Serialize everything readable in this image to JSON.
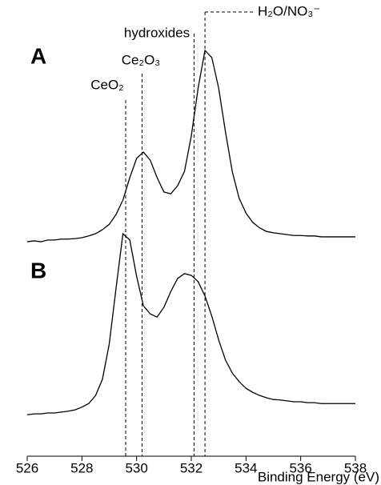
{
  "chart_data": {
    "type": "line",
    "x_label": "Binding Energy (eV)",
    "x": [
      526,
      526.25,
      526.5,
      526.75,
      527,
      527.25,
      527.5,
      527.75,
      528,
      528.25,
      528.5,
      528.75,
      529,
      529.25,
      529.5,
      529.75,
      530,
      530.25,
      530.5,
      530.75,
      531,
      531.25,
      531.5,
      531.75,
      532,
      532.25,
      532.5,
      532.75,
      533,
      533.25,
      533.5,
      533.75,
      534,
      534.25,
      534.5,
      534.75,
      535,
      535.25,
      535.5,
      535.75,
      536,
      536.25,
      536.5,
      536.75,
      537,
      537.25,
      537.5,
      537.75,
      538
    ],
    "series": [
      {
        "name": "A",
        "color": "#000000",
        "values": [
          48.2,
          48.4,
          48.2,
          48.6,
          48.6,
          48.8,
          48.8,
          48.9,
          49.1,
          49.5,
          50.0,
          50.9,
          52.1,
          54.3,
          57.5,
          62.5,
          66.8,
          68.2,
          66.4,
          62.5,
          59.3,
          58.9,
          60.7,
          63.9,
          71.8,
          82.5,
          90.9,
          89.3,
          82.5,
          72.7,
          63.8,
          57.9,
          54.6,
          52.5,
          51.3,
          50.5,
          50.2,
          50.0,
          49.8,
          49.6,
          49.6,
          49.5,
          49.5,
          49.3,
          49.3,
          49.3,
          49.3,
          49.3,
          49.3
        ]
      },
      {
        "name": "B",
        "color": "#000000",
        "values": [
          9.6,
          9.8,
          9.8,
          10.0,
          10.0,
          10.2,
          10.4,
          10.7,
          11.3,
          12.1,
          13.9,
          17.5,
          25.4,
          37.9,
          50.0,
          48.6,
          40.5,
          33.9,
          32.1,
          31.4,
          33.6,
          37.1,
          40.0,
          41.1,
          40.7,
          39.3,
          36.1,
          31.6,
          26.3,
          21.8,
          18.9,
          17.0,
          15.5,
          14.6,
          13.9,
          13.4,
          13.0,
          12.9,
          12.7,
          12.5,
          12.5,
          12.3,
          12.3,
          12.1,
          12.1,
          12.1,
          12.1,
          12.1,
          12.1
        ]
      }
    ],
    "reference_lines": [
      {
        "x": 529.6,
        "label": "CeO₂"
      },
      {
        "x": 530.2,
        "label": "Ce₂O₃"
      },
      {
        "x": 532.1,
        "label": "hydroxides"
      },
      {
        "x": 532.5,
        "label": "H₂O/NO₃⁻"
      }
    ],
    "xlim": [
      526,
      538
    ],
    "xticks": [
      526,
      528,
      530,
      532,
      534,
      536,
      538
    ],
    "ylim": [
      0,
      100
    ]
  }
}
